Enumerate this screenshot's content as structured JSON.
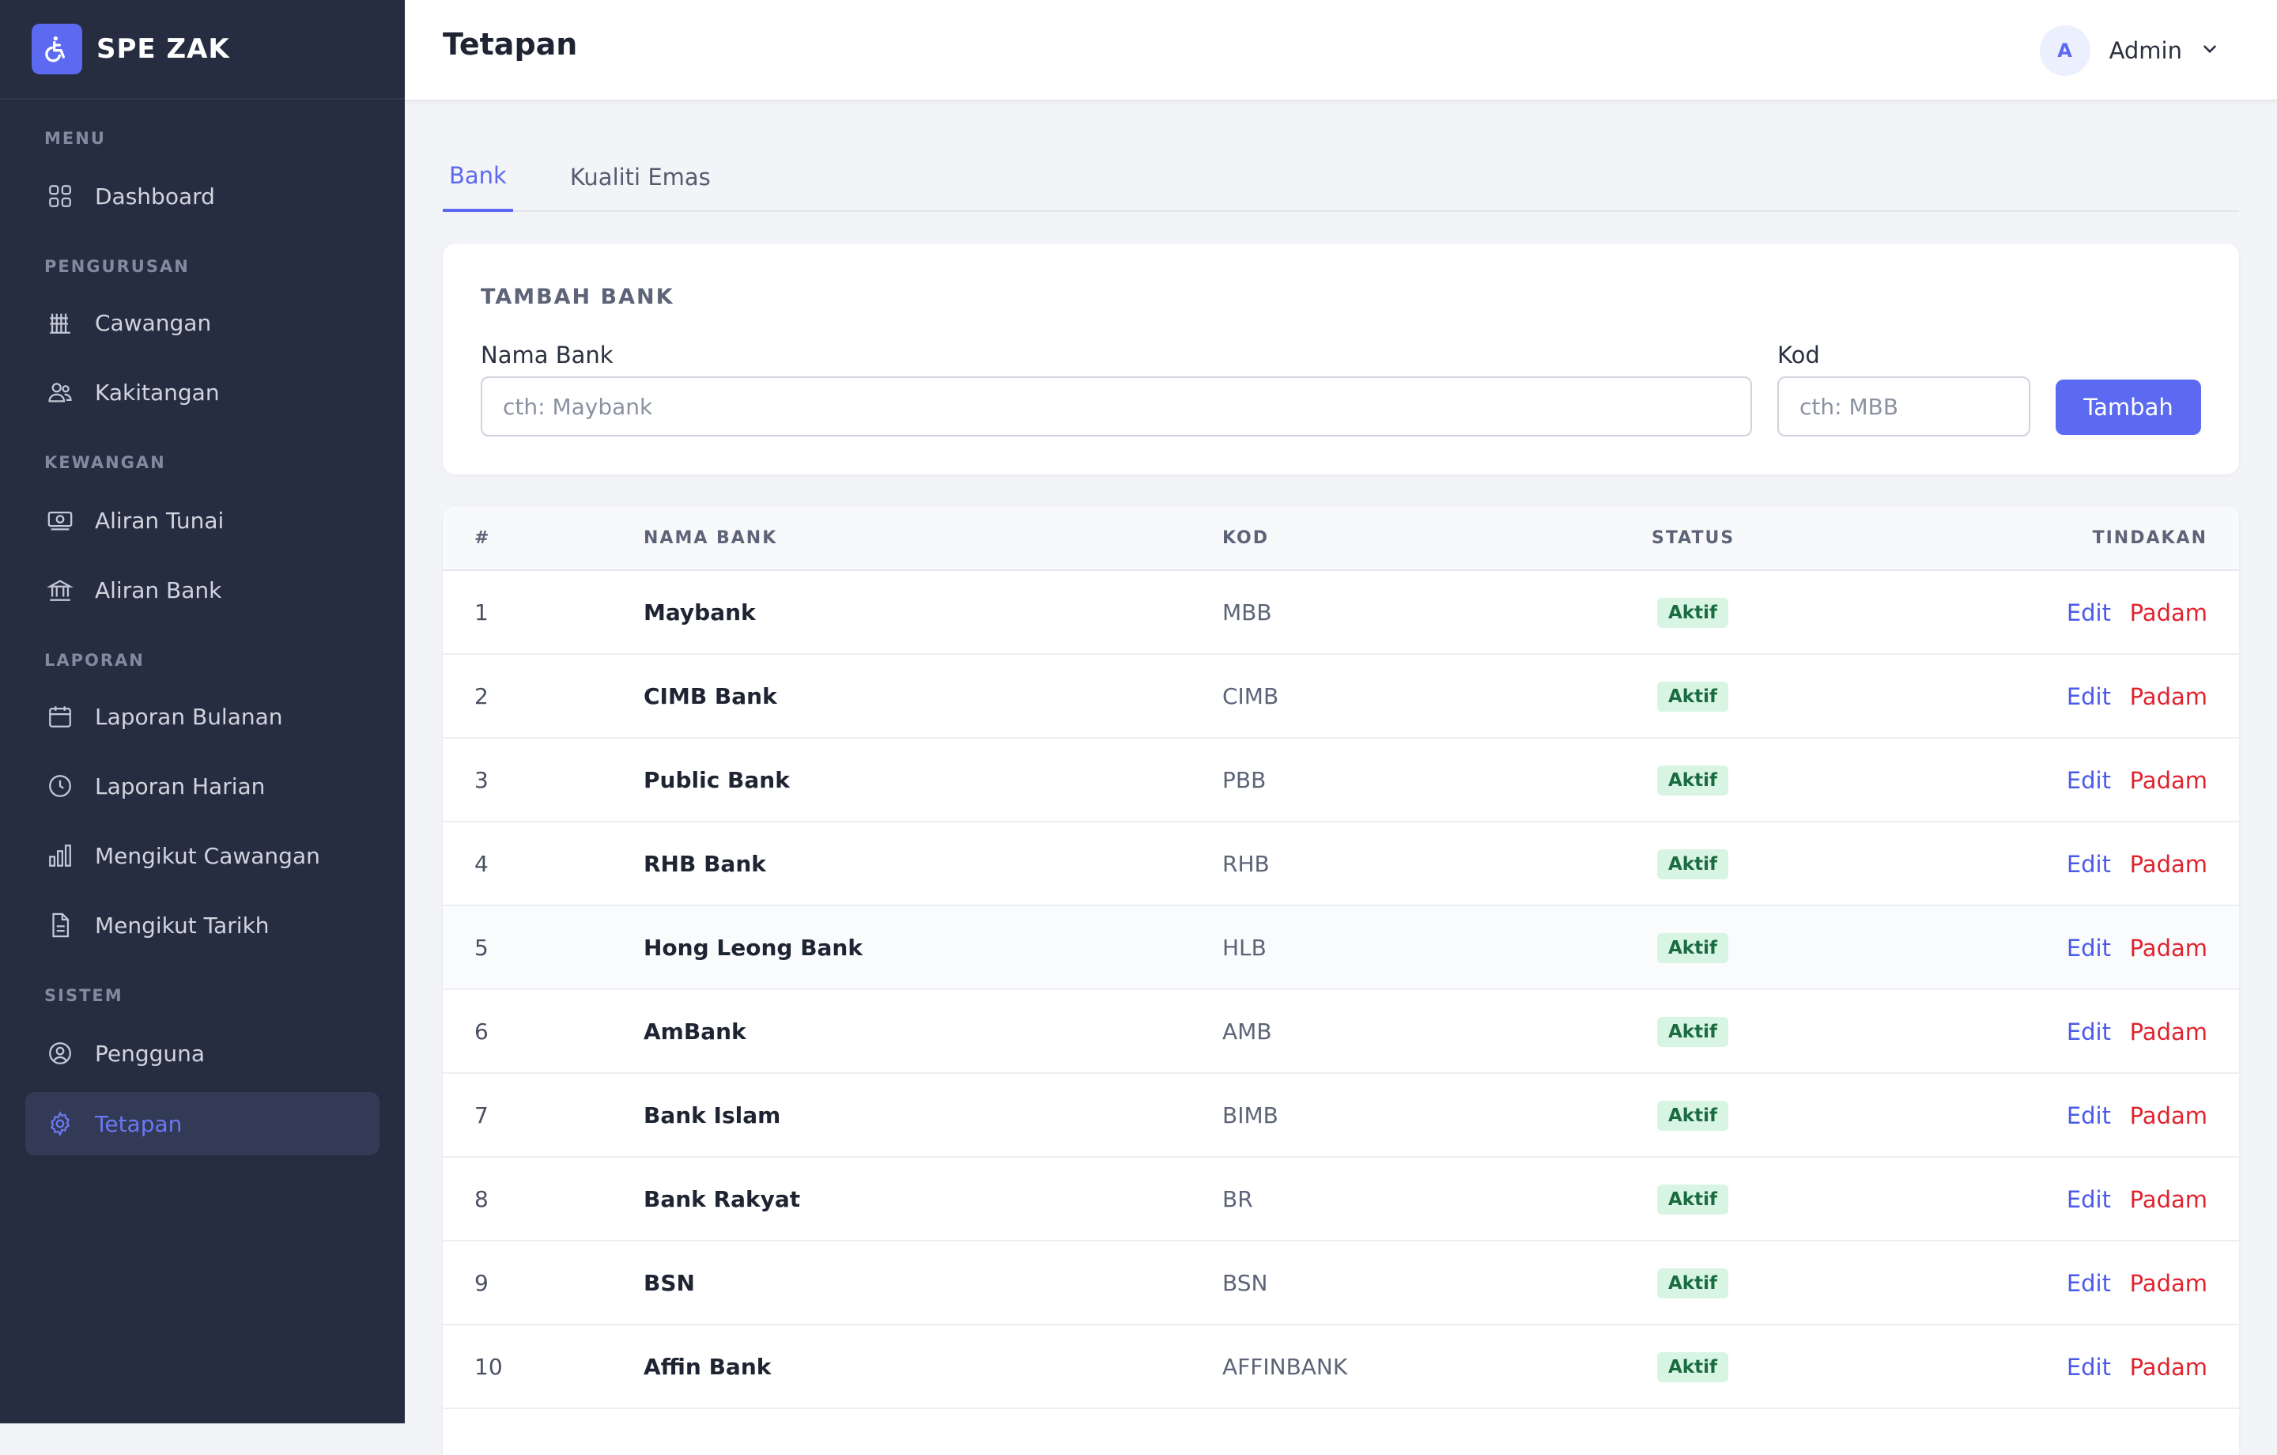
{
  "brand": {
    "name": "SPE ZAK"
  },
  "sidebar": {
    "sections": [
      {
        "label": "MENU",
        "items": [
          {
            "label": "Dashboard",
            "icon": "grid-icon"
          }
        ]
      },
      {
        "label": "PENGURUSAN",
        "items": [
          {
            "label": "Cawangan",
            "icon": "building-icon"
          },
          {
            "label": "Kakitangan",
            "icon": "users-icon"
          }
        ]
      },
      {
        "label": "KEWANGAN",
        "items": [
          {
            "label": "Aliran Tunai",
            "icon": "cash-icon"
          },
          {
            "label": "Aliran Bank",
            "icon": "bank-icon"
          }
        ]
      },
      {
        "label": "LAPORAN",
        "items": [
          {
            "label": "Laporan Bulanan",
            "icon": "calendar-icon"
          },
          {
            "label": "Laporan Harian",
            "icon": "clock-icon"
          },
          {
            "label": "Mengikut Cawangan",
            "icon": "bar-chart-icon"
          },
          {
            "label": "Mengikut Tarikh",
            "icon": "document-icon"
          }
        ]
      },
      {
        "label": "SISTEM",
        "items": [
          {
            "label": "Pengguna",
            "icon": "user-circle-icon"
          },
          {
            "label": "Tetapan",
            "icon": "gear-icon",
            "active": true
          }
        ]
      }
    ]
  },
  "header": {
    "title": "Tetapan",
    "user": {
      "initial": "A",
      "name": "Admin"
    }
  },
  "tabs": [
    {
      "label": "Bank",
      "active": true
    },
    {
      "label": "Kualiti Emas"
    }
  ],
  "form": {
    "title": "TAMBAH BANK",
    "name_label": "Nama Bank",
    "name_placeholder": "cth: Maybank",
    "code_label": "Kod",
    "code_placeholder": "cth: MBB",
    "submit_label": "Tambah"
  },
  "table": {
    "headers": {
      "num": "#",
      "name": "NAMA BANK",
      "code": "KOD",
      "status": "STATUS",
      "actions": "TINDAKAN"
    },
    "edit_label": "Edit",
    "delete_label": "Padam",
    "rows": [
      {
        "num": "1",
        "name": "Maybank",
        "code": "MBB",
        "status": "Aktif"
      },
      {
        "num": "2",
        "name": "CIMB Bank",
        "code": "CIMB",
        "status": "Aktif"
      },
      {
        "num": "3",
        "name": "Public Bank",
        "code": "PBB",
        "status": "Aktif"
      },
      {
        "num": "4",
        "name": "RHB Bank",
        "code": "RHB",
        "status": "Aktif"
      },
      {
        "num": "5",
        "name": "Hong Leong Bank",
        "code": "HLB",
        "status": "Aktif"
      },
      {
        "num": "6",
        "name": "AmBank",
        "code": "AMB",
        "status": "Aktif"
      },
      {
        "num": "7",
        "name": "Bank Islam",
        "code": "BIMB",
        "status": "Aktif"
      },
      {
        "num": "8",
        "name": "Bank Rakyat",
        "code": "BR",
        "status": "Aktif"
      },
      {
        "num": "9",
        "name": "BSN",
        "code": "BSN",
        "status": "Aktif"
      },
      {
        "num": "10",
        "name": "Affin Bank",
        "code": "AFFINBANK",
        "status": "Aktif"
      },
      {
        "num": "",
        "name": "",
        "code": "",
        "status": ""
      }
    ]
  },
  "colors": {
    "accent": "#5b6af0",
    "sidebar": "#272d40",
    "danger": "#e0232e",
    "success_bg": "#d8f5e4"
  }
}
